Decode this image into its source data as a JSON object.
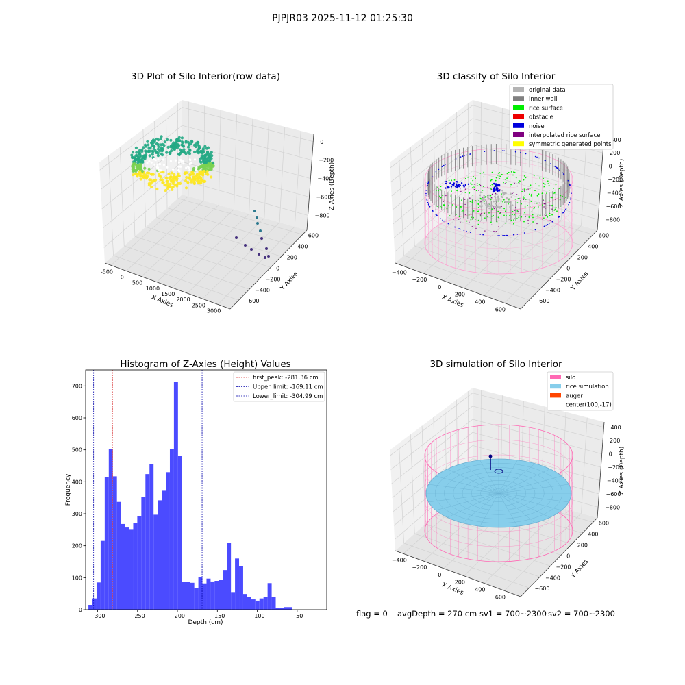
{
  "figure": {
    "suptitle": "PJPJR03 2025-11-12 01:25:30",
    "status": {
      "flag": "flag = 0",
      "avg_depth": "avgDepth = 270 cm",
      "sv1": "sv1 = 700~2300",
      "sv2": "sv2 = 700~2300"
    }
  },
  "panels": {
    "raw": {
      "title": "3D Plot of Silo Interior(row data)",
      "xlabel": "X Axies",
      "ylabel": "Y Axies",
      "zlabel": "Z Axies (Depth)",
      "xticks": [
        "-500",
        "0",
        "500",
        "1000",
        "1500",
        "2000",
        "2500",
        "3000"
      ],
      "yticks": [
        "600",
        "400",
        "200",
        "0",
        "−200",
        "−400",
        "−600"
      ],
      "zticks": [
        "0",
        "−200",
        "−400",
        "−600",
        "−800"
      ]
    },
    "classify": {
      "title": "3D classify of Silo Interior",
      "xlabel": "X Axies",
      "ylabel": "Y Axies",
      "zlabel": "Z Axies (Depth)",
      "xticks": [
        "−400",
        "−200",
        "0",
        "200",
        "400",
        "600"
      ],
      "yticks": [
        "600",
        "400",
        "200",
        "0",
        "−200",
        "−400",
        "−600"
      ],
      "zticks": [
        "400",
        "200",
        "0",
        "−200",
        "−400",
        "−600",
        "−800"
      ],
      "legend": [
        {
          "label": "original data",
          "color": "#b4b4b4"
        },
        {
          "label": "inner wall",
          "color": "#808080"
        },
        {
          "label": "rice surface",
          "color": "#00ee00"
        },
        {
          "label": "obstacle",
          "color": "#ee0000"
        },
        {
          "label": "noise",
          "color": "#0000dd"
        },
        {
          "label": "interpolated rice surface",
          "color": "#800080"
        },
        {
          "label": "symmetric generated points",
          "color": "#ffff00"
        }
      ]
    },
    "simulation": {
      "title": "3D simulation of Silo Interior",
      "xlabel": "X Axies",
      "ylabel": "Y Axies",
      "zlabel": "Z Axies (Depth)",
      "xticks": [
        "−400",
        "−200",
        "0",
        "200",
        "400",
        "600"
      ],
      "yticks": [
        "600",
        "400",
        "200",
        "0",
        "−200",
        "−400",
        "−600"
      ],
      "zticks": [
        "400",
        "200",
        "0",
        "−200",
        "−400",
        "−600",
        "−800"
      ],
      "legend": [
        {
          "label": "silo",
          "color": "#ff69b4"
        },
        {
          "label": "rice simulation",
          "color": "#87ceeb"
        },
        {
          "label": "auger",
          "color": "#ff4500"
        },
        {
          "label": "center(100,-17)",
          "color": ""
        }
      ]
    }
  },
  "chart_data": [
    {
      "type": "scatter",
      "title": "3D Plot of Silo Interior(row data)",
      "xlabel": "X Axies",
      "ylabel": "Y Axies",
      "zlabel": "Z Axies (Depth)",
      "xlim": [
        -500,
        3000
      ],
      "ylim": [
        -600,
        600
      ],
      "zlim": [
        -900,
        0
      ],
      "colors": [
        "#2a788e",
        "#22a884",
        "#7ad151",
        "#fde725",
        "#46327e"
      ]
    },
    {
      "type": "scatter",
      "title": "3D classify of Silo Interior",
      "xlabel": "X Axies",
      "ylabel": "Y Axies",
      "zlabel": "Z Axies (Depth)",
      "xlim": [
        -500,
        700
      ],
      "ylim": [
        -600,
        600
      ],
      "zlim": [
        -900,
        400
      ],
      "series": [
        {
          "name": "original data",
          "color": "#b4b4b4"
        },
        {
          "name": "inner wall",
          "color": "#808080"
        },
        {
          "name": "rice surface",
          "color": "#00ee00"
        },
        {
          "name": "obstacle",
          "color": "#ee0000"
        },
        {
          "name": "noise",
          "color": "#0000dd"
        },
        {
          "name": "interpolated rice surface",
          "color": "#800080"
        },
        {
          "name": "symmetric generated points",
          "color": "#ffff00"
        }
      ],
      "legend_position": "upper right"
    },
    {
      "type": "bar",
      "title": "Histogram of Z-Axies (Height) Values",
      "xlabel": "Depth (cm)",
      "ylabel": "Frequency",
      "xlim": [
        -315,
        -13
      ],
      "ylim": [
        0,
        750
      ],
      "xticks": [
        -300,
        -250,
        -200,
        -150,
        -100,
        -50
      ],
      "yticks": [
        0,
        100,
        200,
        300,
        400,
        500,
        600,
        700
      ],
      "bin_start": -311.5,
      "bin_width": 5.1,
      "values": [
        15,
        35,
        85,
        215,
        415,
        502,
        417,
        337,
        268,
        257,
        252,
        270,
        293,
        352,
        424,
        455,
        297,
        342,
        372,
        430,
        502,
        713,
        482,
        87,
        86,
        84,
        67,
        101,
        82,
        97,
        88,
        90,
        93,
        124,
        208,
        55,
        160,
        137,
        49,
        40,
        32,
        28,
        35,
        40,
        83,
        40,
        5,
        5,
        8,
        8
      ],
      "bar_color": "#4b4bff",
      "reference_lines": [
        {
          "name": "first_peak: -281.36 cm",
          "x": -281.36,
          "color": "#d62728"
        },
        {
          "name": "Upper_limit: -169.11 cm",
          "x": -169.11,
          "color": "#0000aa"
        },
        {
          "name": "Lower_limit: -304.99 cm",
          "x": -304.99,
          "color": "#0000aa"
        }
      ],
      "legend_position": "upper right"
    },
    {
      "type": "scatter",
      "title": "3D simulation of Silo Interior",
      "xlabel": "X Axies",
      "ylabel": "Y Axies",
      "zlabel": "Z Axies (Depth)",
      "xlim": [
        -500,
        700
      ],
      "ylim": [
        -600,
        600
      ],
      "zlim": [
        -900,
        400
      ],
      "series": [
        {
          "name": "silo",
          "color": "#ff69b4"
        },
        {
          "name": "rice simulation",
          "color": "#87ceeb"
        },
        {
          "name": "auger",
          "color": "#ff4500"
        },
        {
          "name": "center(100,-17)"
        }
      ],
      "legend_position": "upper right"
    }
  ]
}
